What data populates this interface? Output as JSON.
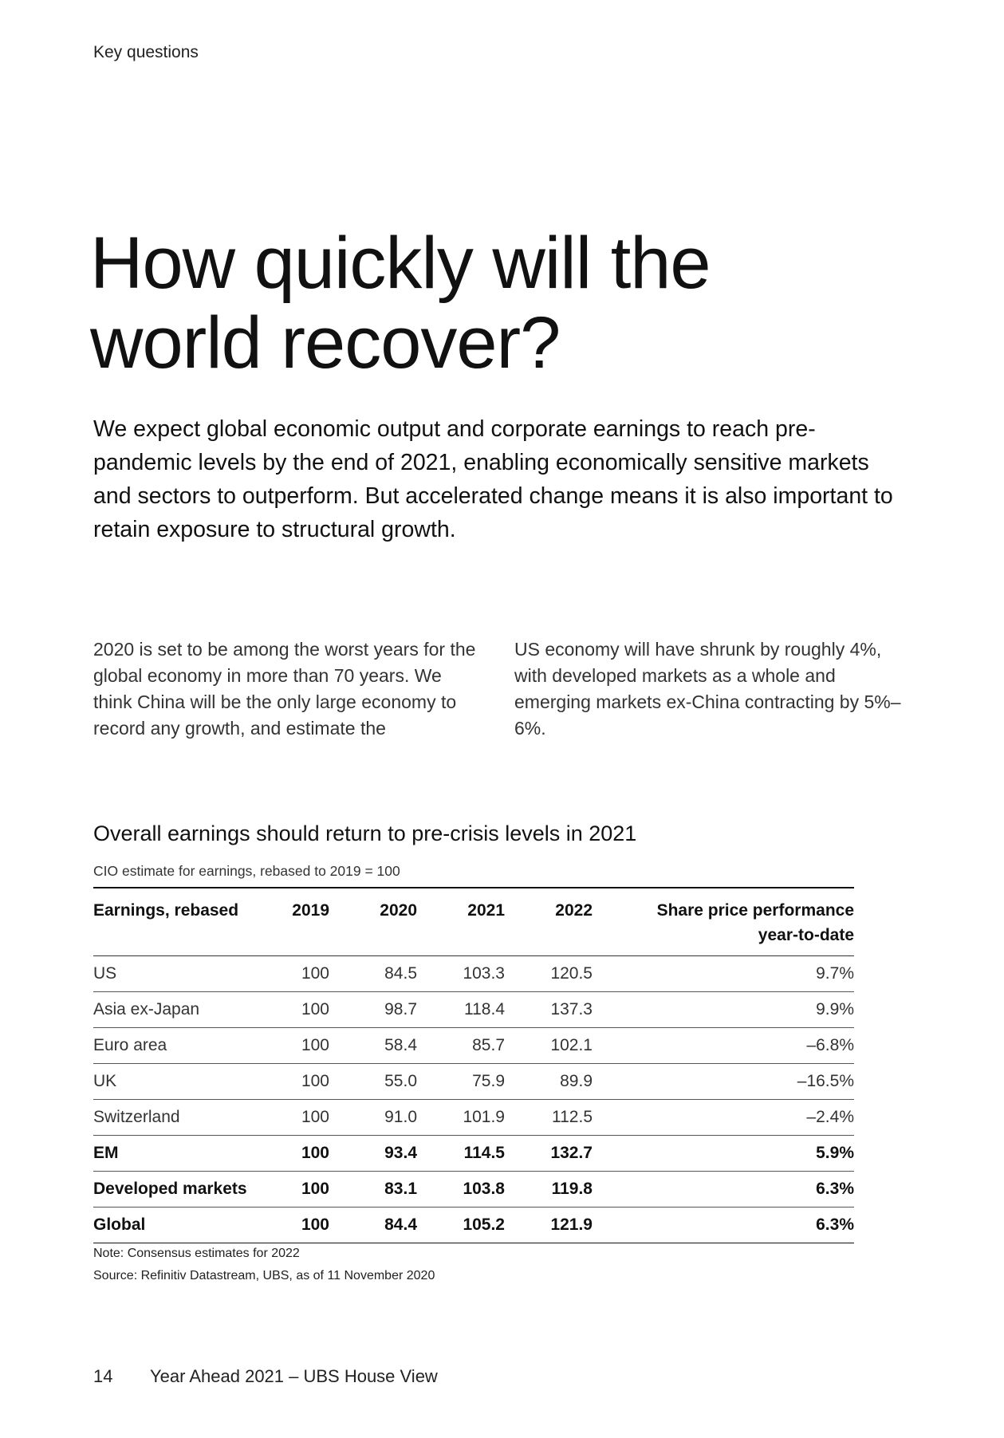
{
  "header": {
    "section": "Key questions"
  },
  "headline": {
    "line1": "How quickly will the",
    "line2": "world recover?"
  },
  "lead": "We expect global economic output and corporate earnings to reach pre-pandemic levels by the end of 2021, enabling economically sensitive markets and sectors to outperform. But accelerated change means it is also important to retain exposure to structural growth.",
  "body": {
    "left": "2020 is set to be among the worst years for the global economy in more than 70 years. We think China will be the only large economy to record any growth, and estimate the",
    "right": "US economy will have shrunk by roughly 4%, with developed markets as a whole and emerging markets ex-China contracting by 5%–6%."
  },
  "table": {
    "title": "Overall earnings should return to pre-crisis levels in 2021",
    "subtitle": "CIO estimate for earnings, rebased to 2019 = 100",
    "headers": [
      "Earnings, rebased",
      "2019",
      "2020",
      "2021",
      "2022",
      "Share price performance",
      "year-to-date"
    ],
    "rows": [
      [
        "US",
        "100",
        "84.5",
        "103.3",
        "120.5",
        "9.7%"
      ],
      [
        "Asia ex-Japan",
        "100",
        "98.7",
        "118.4",
        "137.3",
        "9.9%"
      ],
      [
        "Euro area",
        "100",
        "58.4",
        "85.7",
        "102.1",
        "–6.8%"
      ],
      [
        "UK",
        "100",
        "55.0",
        "75.9",
        "89.9",
        "–16.5%"
      ],
      [
        "Switzerland",
        "100",
        "91.0",
        "101.9",
        "112.5",
        "–2.4%"
      ],
      [
        "EM",
        "100",
        "93.4",
        "114.5",
        "132.7",
        "5.9%"
      ],
      [
        "Developed markets",
        "100",
        "83.1",
        "103.8",
        "119.8",
        "6.3%"
      ],
      [
        "Global",
        "100",
        "84.4",
        "105.2",
        "121.9",
        "6.3%"
      ]
    ],
    "note": "Note: Consensus estimates for 2022",
    "source": "Source: Refinitiv Datastream, UBS, as of 11 November 2020"
  },
  "footer": {
    "page_number": "14",
    "publication": "Year Ahead 2021 – UBS House View"
  }
}
